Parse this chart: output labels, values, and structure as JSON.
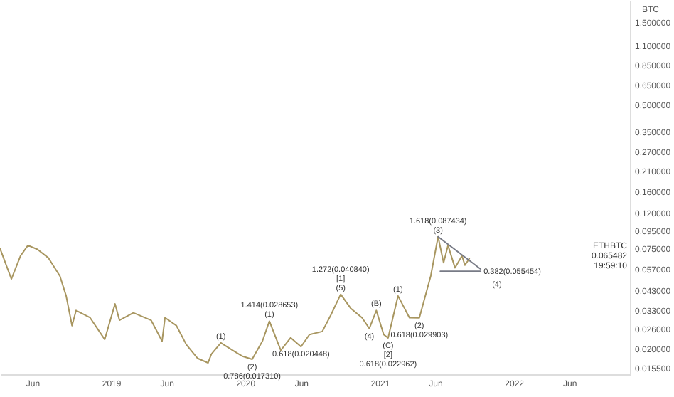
{
  "chart_data": {
    "type": "line",
    "ylabel": "BTC",
    "log": "y",
    "grid": false,
    "xlim": [
      "2018-03-05",
      "2022-11-13"
    ],
    "xticks": [
      {
        "value": "2018-06-01",
        "label": "Jun"
      },
      {
        "value": "2019-01-01",
        "label": "2019"
      },
      {
        "value": "2019-06-01",
        "label": "Jun"
      },
      {
        "value": "2020-01-01",
        "label": "2020"
      },
      {
        "value": "2020-06-01",
        "label": "Jun"
      },
      {
        "value": "2021-01-01",
        "label": "2021"
      },
      {
        "value": "2021-06-01",
        "label": "Jun"
      },
      {
        "value": "2022-01-01",
        "label": "2022"
      },
      {
        "value": "2022-06-01",
        "label": "Jun"
      }
    ],
    "ylim": [
      0.0142,
      2.0
    ],
    "yticks": [
      {
        "value": 1.5,
        "label": "1.500000"
      },
      {
        "value": 1.1,
        "label": "1.100000"
      },
      {
        "value": 0.85,
        "label": "0.850000"
      },
      {
        "value": 0.65,
        "label": "0.650000"
      },
      {
        "value": 0.5,
        "label": "0.500000"
      },
      {
        "value": 0.35,
        "label": "0.350000"
      },
      {
        "value": 0.27,
        "label": "0.270000"
      },
      {
        "value": 0.21,
        "label": "0.210000"
      },
      {
        "value": 0.16,
        "label": "0.160000"
      },
      {
        "value": 0.12,
        "label": "0.120000"
      },
      {
        "value": 0.095,
        "label": "0.095000"
      },
      {
        "value": 0.075,
        "label": "0.075000"
      },
      {
        "value": 0.057,
        "label": "0.057000"
      },
      {
        "value": 0.043,
        "label": "0.043000"
      },
      {
        "value": 0.033,
        "label": "0.033000"
      },
      {
        "value": 0.026,
        "label": "0.026000"
      },
      {
        "value": 0.02,
        "label": "0.020000"
      },
      {
        "value": 0.0155,
        "label": "0.015500"
      }
    ],
    "x": [
      "2018-03-05",
      "2018-04-05",
      "2018-04-30",
      "2018-05-20",
      "2018-06-15",
      "2018-07-15",
      "2018-08-15",
      "2018-09-01",
      "2018-09-17",
      "2018-09-28",
      "2018-11-05",
      "2018-12-15",
      "2019-01-12",
      "2019-01-24",
      "2019-03-03",
      "2019-04-20",
      "2019-05-20",
      "2019-05-28",
      "2019-06-28",
      "2019-07-25",
      "2019-08-25",
      "2019-09-22",
      "2019-10-01",
      "2019-10-27",
      "2019-11-28",
      "2019-12-25",
      "2020-01-20",
      "2020-02-17",
      "2020-03-07",
      "2020-04-07",
      "2020-05-04",
      "2020-06-01",
      "2020-06-24",
      "2020-07-29",
      "2020-08-21",
      "2020-09-17",
      "2020-10-14",
      "2020-11-14",
      "2020-12-04",
      "2020-12-23",
      "2021-01-12",
      "2021-01-24",
      "2021-02-20",
      "2021-03-23",
      "2021-04-19",
      "2021-05-20",
      "2021-06-09",
      "2021-06-24",
      "2021-07-06",
      "2021-07-25",
      "2021-08-13",
      "2021-08-21",
      "2021-09-02"
    ],
    "series": [
      {
        "color": "#a89660",
        "values": [
          0.075,
          0.05,
          0.068,
          0.078,
          0.074,
          0.066,
          0.052,
          0.04,
          0.027,
          0.033,
          0.03,
          0.0225,
          0.036,
          0.029,
          0.032,
          0.029,
          0.022,
          0.03,
          0.027,
          0.021,
          0.0175,
          0.0165,
          0.0185,
          0.0215,
          0.0195,
          0.018,
          0.01731,
          0.022,
          0.028653,
          0.0195,
          0.023,
          0.020448,
          0.024,
          0.025,
          0.031,
          0.04084,
          0.034,
          0.03,
          0.026,
          0.033,
          0.024,
          0.022962,
          0.04,
          0.03,
          0.029903,
          0.052,
          0.087434,
          0.062,
          0.078,
          0.058,
          0.068,
          0.06,
          0.065482
        ]
      },
      {
        "type": "line",
        "color": "#787b86",
        "x": [
          "2021-06-09",
          "2021-10-03"
        ],
        "values": [
          0.087434,
          0.057
        ]
      },
      {
        "type": "line",
        "color": "#787b86",
        "x": [
          "2021-06-15",
          "2021-10-03"
        ],
        "values": [
          0.055454,
          0.055454
        ]
      }
    ],
    "annotations": [
      {
        "text": "(1)",
        "x": "2020-03-07",
        "y": 0.028653
      },
      {
        "text": "1.414(0.028653)",
        "x": "2020-03-07",
        "y": 0.028653
      },
      {
        "text": "(1)",
        "x": "2019-10-27",
        "y": 0.0215
      },
      {
        "text": "(2)",
        "x": "2020-01-20",
        "y": 0.01731
      },
      {
        "text": "0.786(0.017310)",
        "x": "2020-01-20",
        "y": 0.01731
      },
      {
        "text": "0.618(0.020448)",
        "x": "2020-06-01",
        "y": 0.020448
      },
      {
        "text": "(5)",
        "x": "2020-09-17",
        "y": 0.04084
      },
      {
        "text": "[1]",
        "x": "2020-09-17",
        "y": 0.04084
      },
      {
        "text": "1.272(0.040840)",
        "x": "2020-09-17",
        "y": 0.04084
      },
      {
        "text": "(B)",
        "x": "2020-12-23",
        "y": 0.033
      },
      {
        "text": "(4)",
        "x": "2020-12-04",
        "y": 0.026
      },
      {
        "text": "(C)",
        "x": "2021-01-24",
        "y": 0.022962
      },
      {
        "text": "[2]",
        "x": "2021-01-24",
        "y": 0.022962
      },
      {
        "text": "0.618(0.022962)",
        "x": "2021-01-24",
        "y": 0.022962
      },
      {
        "text": "(1)",
        "x": "2021-02-20",
        "y": 0.04
      },
      {
        "text": "(2)",
        "x": "2021-04-19",
        "y": 0.029903
      },
      {
        "text": "0.618(0.029903)",
        "x": "2021-04-19",
        "y": 0.029903
      },
      {
        "text": "(3)",
        "x": "2021-06-09",
        "y": 0.087434
      },
      {
        "text": "1.618(0.087434)",
        "x": "2021-06-09",
        "y": 0.087434
      },
      {
        "text": "0.382(0.055454)",
        "x": "2021-10-03",
        "y": 0.055454
      },
      {
        "text": "(4)",
        "x": "2021-10-03",
        "y": 0.055454
      },
      "ETHBTC",
      "0.065482",
      "19:59:10"
    ]
  }
}
